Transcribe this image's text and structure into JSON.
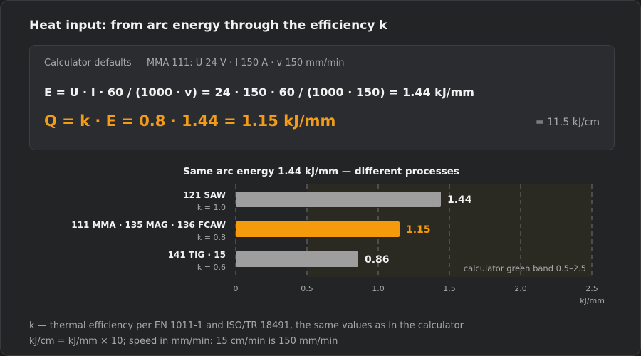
{
  "title": "Heat input: from arc energy through the efficiency k",
  "calculator": {
    "defaults": "Calculator defaults — MMA 111: U 24 V · I 150 A · v 150 mm/min",
    "arc_energy_formula": "E = U · I · 60 / (1000 · v) = 24 · 150 · 60 / (1000 · 150) = 1.44 kJ/mm",
    "heat_input_formula": "Q = k · E = 0.8 · 1.44 = 1.15 kJ/mm",
    "per_cm": "= 11.5 kJ/cm"
  },
  "chart_data": {
    "type": "bar",
    "orientation": "horizontal",
    "title": "Same arc energy 1.44 kJ/mm — different processes",
    "categories": [
      "121 SAW",
      "111 MMA · 135 MAG · 136 FCAW",
      "141 TIG · 15"
    ],
    "sublabels": [
      "k = 1.0",
      "k = 0.8",
      "k = 0.6"
    ],
    "values": [
      1.44,
      1.15,
      0.86
    ],
    "value_labels": [
      "1.44",
      "1.15",
      "0.86"
    ],
    "highlight_index": 1,
    "xlim": [
      0,
      2.5
    ],
    "xticks": [
      "0",
      "0.5",
      "1.0",
      "1.5",
      "2.0",
      "2.5"
    ],
    "xlabel": "kJ/mm",
    "band": {
      "range": [
        0.5,
        2.5
      ],
      "label": "calculator green band 0.5–2.5"
    },
    "grid": true,
    "colors": {
      "bar": "#9e9e9e",
      "highlight": "#f59a0b",
      "band": "#2b2a22",
      "grid": "#5a5a5a",
      "text": "#f2f2f2",
      "muted": "#a8a8aa"
    }
  },
  "footnotes": [
    "k — thermal efficiency per EN 1011-1 and ISO/TR 18491, the same values as in the calculator",
    "kJ/cm = kJ/mm × 10; speed in mm/min: 15 cm/min is 150 mm/min"
  ]
}
